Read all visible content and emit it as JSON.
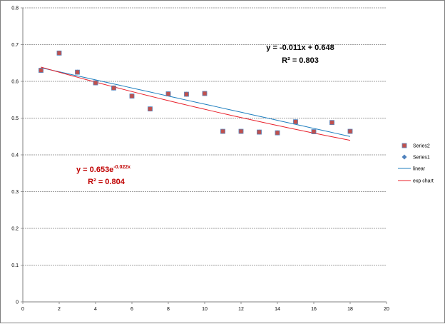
{
  "chart_data": {
    "type": "scatter",
    "xlim": [
      0,
      20
    ],
    "ylim": [
      0,
      0.8
    ],
    "x_ticks": [
      "0",
      "2",
      "4",
      "6",
      "8",
      "10",
      "12",
      "14",
      "16",
      "18",
      "20"
    ],
    "y_ticks": [
      "0",
      "0.1",
      "0.2",
      "0.3",
      "0.4",
      "0.5",
      "0.6",
      "0.7",
      "0.8"
    ],
    "grid": "horizontal dashed",
    "legend_position": "right",
    "series": [
      {
        "name": "Series2",
        "marker": "square",
        "color": "#c0504d",
        "x": [
          1,
          2,
          3,
          4,
          5,
          6,
          7,
          8,
          9,
          10,
          11,
          12,
          13,
          14,
          15,
          16,
          17,
          18
        ],
        "y": [
          0.63,
          0.677,
          0.625,
          0.596,
          0.582,
          0.56,
          0.525,
          0.566,
          0.565,
          0.567,
          0.464,
          0.464,
          0.462,
          0.46,
          0.49,
          0.463,
          0.488,
          0.464
        ]
      },
      {
        "name": "Series1",
        "marker": "diamond",
        "color": "#4f81bd",
        "x": [
          1,
          2,
          3,
          4,
          5,
          6,
          7,
          8,
          9,
          10,
          11,
          12,
          13,
          14,
          15,
          16,
          17,
          18
        ],
        "y": [
          0.63,
          0.677,
          0.625,
          0.596,
          0.582,
          0.56,
          0.525,
          0.566,
          0.565,
          0.567,
          0.464,
          0.464,
          0.462,
          0.46,
          0.49,
          0.463,
          0.488,
          0.464
        ]
      }
    ],
    "trendlines": [
      {
        "name": "linear",
        "kind": "linear",
        "color": "#1f7fbf",
        "slope": -0.011,
        "intercept": 0.648,
        "x_range": [
          1,
          18
        ]
      },
      {
        "name": "exp chart",
        "kind": "exponential",
        "color": "#e8202a",
        "a": 0.653,
        "b": -0.022,
        "x_range": [
          1,
          18
        ]
      }
    ],
    "annotations": {
      "linear_equation": "y = -0.011x + 0.648",
      "linear_r2": "R² = 0.803",
      "exp_equation_base": "y = 0.653e",
      "exp_equation_exponent": "-0.022x",
      "exp_r2": "R² = 0.804"
    },
    "legend": [
      "Series2",
      "Series1",
      "linear",
      "exp chart"
    ]
  }
}
